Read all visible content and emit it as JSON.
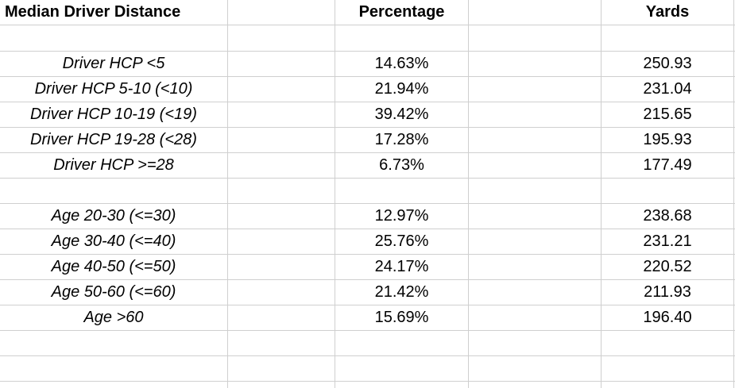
{
  "headers": {
    "col1": "Median Driver Distance",
    "col3": "Percentage",
    "col5": "Yards"
  },
  "rows": [
    {
      "label": "",
      "percentage": "",
      "yards": ""
    },
    {
      "label": "Driver HCP <5",
      "percentage": "14.63%",
      "yards": "250.93"
    },
    {
      "label": "Driver HCP 5-10 (<10)",
      "percentage": "21.94%",
      "yards": "231.04"
    },
    {
      "label": "Driver HCP 10-19 (<19)",
      "percentage": "39.42%",
      "yards": "215.65"
    },
    {
      "label": "Driver HCP 19-28 (<28)",
      "percentage": "17.28%",
      "yards": "195.93"
    },
    {
      "label": "Driver HCP >=28",
      "percentage": "6.73%",
      "yards": "177.49"
    },
    {
      "label": "",
      "percentage": "",
      "yards": ""
    },
    {
      "label": "Age 20-30 (<=30)",
      "percentage": "12.97%",
      "yards": "238.68"
    },
    {
      "label": "Age 30-40 (<=40)",
      "percentage": "25.76%",
      "yards": "231.21"
    },
    {
      "label": "Age 40-50 (<=50)",
      "percentage": "24.17%",
      "yards": "220.52"
    },
    {
      "label": "Age 50-60 (<=60)",
      "percentage": "21.42%",
      "yards": "211.93"
    },
    {
      "label": "Age >60",
      "percentage": "15.69%",
      "yards": "196.40"
    },
    {
      "label": "",
      "percentage": "",
      "yards": ""
    },
    {
      "label": "",
      "percentage": "",
      "yards": ""
    }
  ],
  "colors": {
    "gridline": "#cfcfcf",
    "text": "#000000",
    "background": "#ffffff"
  }
}
